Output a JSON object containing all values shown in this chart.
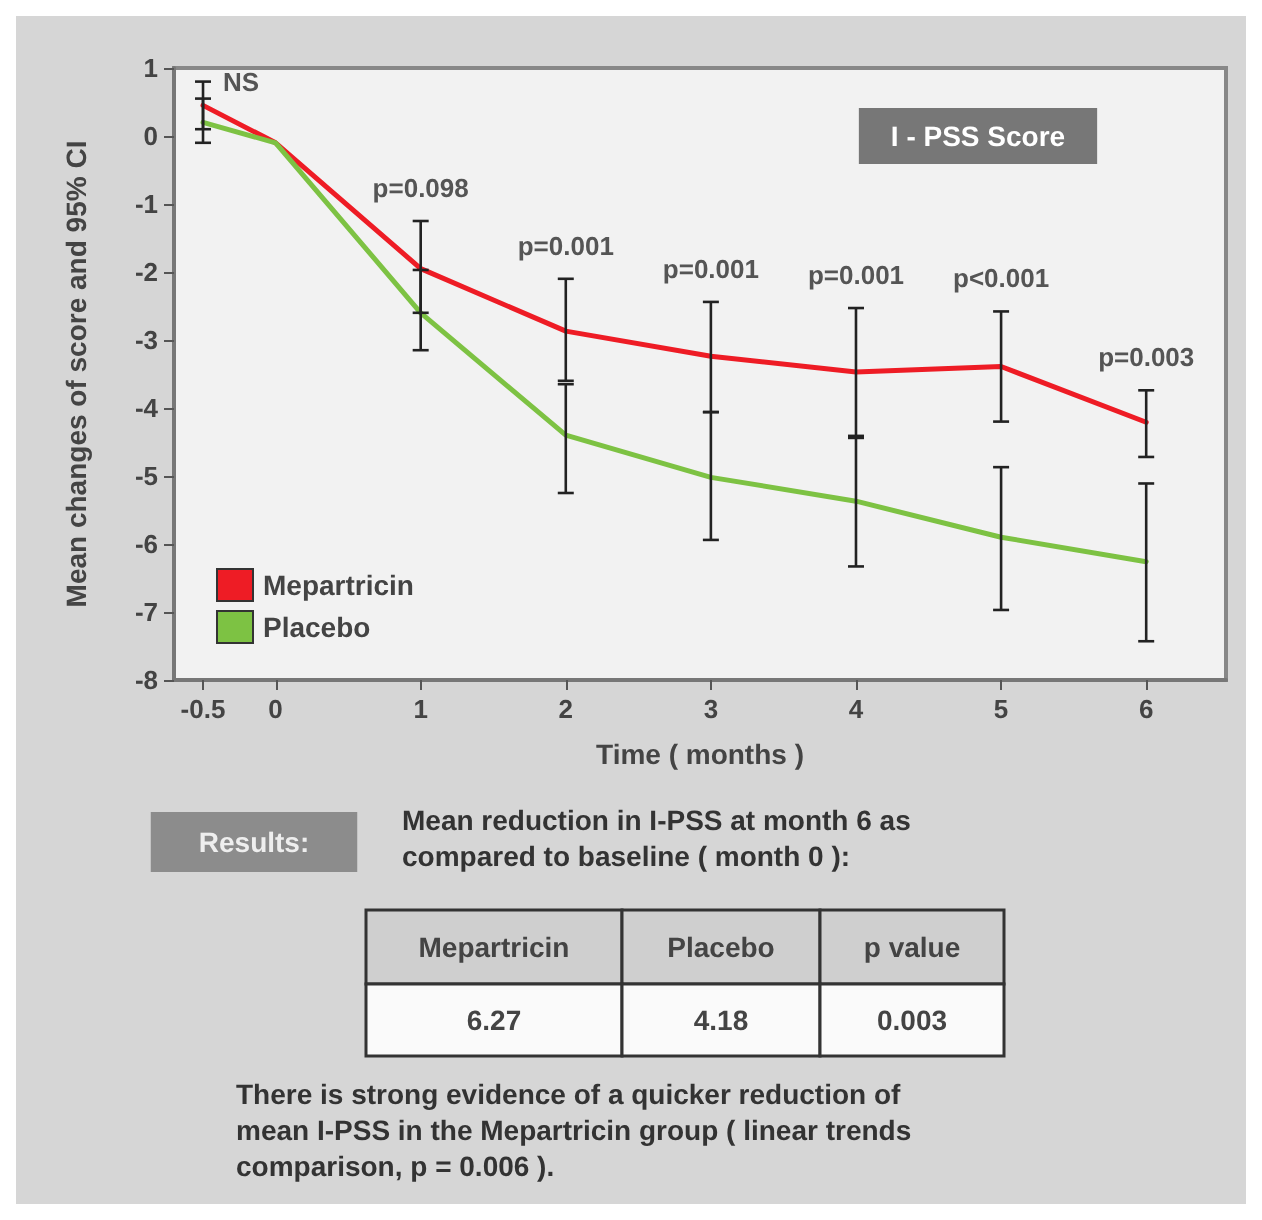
{
  "chart_data": {
    "type": "line",
    "xlabel": "Time ( months )",
    "ylabel": "Mean changes of score and 95% CI",
    "x": [
      -0.5,
      0,
      1,
      2,
      3,
      4,
      5,
      6
    ],
    "series": [
      {
        "name": "Mepartricin",
        "color": "#ee1c25",
        "values": [
          0.45,
          -0.1,
          -1.95,
          -2.87,
          -3.24,
          -3.47,
          -3.39,
          -4.21
        ],
        "errors": [
          [
            0.1,
            0.8
          ],
          null,
          [
            -2.6,
            -1.25
          ],
          [
            -3.6,
            -2.1
          ],
          [
            -4.06,
            -2.44
          ],
          [
            -4.41,
            -2.53
          ],
          [
            -4.2,
            -2.58
          ],
          [
            -4.72,
            -3.74
          ]
        ]
      },
      {
        "name": "Placebo",
        "color": "#7dc243",
        "values": [
          0.2,
          -0.1,
          -2.6,
          -4.4,
          -5.02,
          -5.37,
          -5.9,
          -6.26
        ],
        "errors": [
          [
            -0.1,
            0.55
          ],
          null,
          [
            -3.15,
            -1.97
          ],
          [
            -5.25,
            -3.65
          ],
          [
            -5.94,
            -4.06
          ],
          [
            -6.33,
            -4.44
          ],
          [
            -6.97,
            -4.87
          ],
          [
            -7.43,
            -5.11
          ]
        ]
      }
    ],
    "xlim": [
      -0.7,
      6.55
    ],
    "xticks": [
      -0.5,
      0,
      1,
      2,
      3,
      4,
      5,
      6
    ],
    "ylim": [
      -8,
      1
    ],
    "yticks": [
      -8,
      -7,
      -6,
      -5,
      -4,
      -3,
      -2,
      -1,
      0,
      1
    ],
    "grid": false,
    "legend": "bottom left",
    "marker": "none",
    "line_style": "solid",
    "annotations": [
      {
        "text": "NS",
        "x": -0.5,
        "y": 0.8
      },
      {
        "text": "p=0.098",
        "x": 1,
        "y": -1.25
      },
      {
        "text": "p=0.001",
        "x": 2,
        "y": -2.1
      },
      {
        "text": "p=0.001",
        "x": 3,
        "y": -2.44
      },
      {
        "text": "p=0.001",
        "x": 4,
        "y": -2.53
      },
      {
        "text": "p<0.001",
        "x": 5,
        "y": -2.58
      },
      {
        "text": "p=0.003",
        "x": 6,
        "y": -3.74
      },
      "I - PSS Score",
      "Results:",
      "Mean reduction in I-PSS at month 6 as\ncompared to baseline ( month 0 ):",
      "Mepartricin",
      "Placebo",
      "p value",
      "6.27",
      "4.18",
      "0.003",
      "There is strong evidence of a quicker reduction of\nmean I-PSS in the Mepartricin group ( linear trends\ncomparison, p = 0.006 )."
    ]
  }
}
